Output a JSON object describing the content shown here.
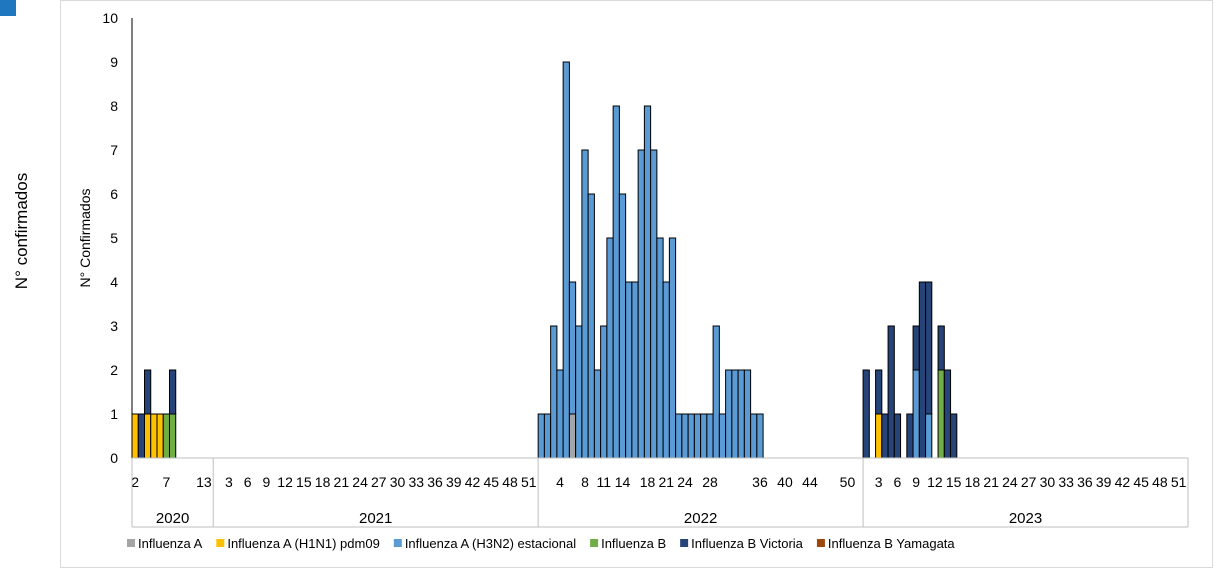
{
  "outer_ylabel": "N°  confirmados",
  "colors": {
    "Influenza A": "#a5a5a5",
    "Influenza A (H1N1) pdm09": "#ffc000",
    "Influenza A (H3N2) estacional": "#5b9bd5",
    "Influenza B": "#70ad47",
    "Influenza B Victoria": "#264478",
    "Influenza B Yamagata": "#9e480e"
  },
  "chart_data": {
    "type": "bar",
    "stacked": true,
    "ylabel": "N° Confirmados",
    "ylim": [
      0,
      10
    ],
    "yticks": [
      0,
      1,
      2,
      3,
      4,
      5,
      6,
      7,
      8,
      9,
      10
    ],
    "years": [
      {
        "label": "2020",
        "weeks": [
          2,
          3,
          4,
          5,
          6,
          7,
          8,
          9,
          10,
          11,
          12,
          13,
          14
        ]
      },
      {
        "label": "2021",
        "weeks": [
          1,
          2,
          3,
          4,
          5,
          6,
          7,
          8,
          9,
          10,
          11,
          12,
          13,
          14,
          15,
          16,
          17,
          18,
          19,
          20,
          21,
          22,
          23,
          24,
          25,
          26,
          27,
          28,
          29,
          30,
          31,
          32,
          33,
          34,
          35,
          36,
          37,
          38,
          39,
          40,
          41,
          42,
          43,
          44,
          45,
          46,
          47,
          48,
          49,
          50,
          51,
          52
        ]
      },
      {
        "label": "2022",
        "weeks": [
          1,
          2,
          3,
          4,
          5,
          6,
          7,
          8,
          9,
          10,
          11,
          12,
          13,
          14,
          15,
          16,
          17,
          18,
          19,
          20,
          21,
          22,
          23,
          24,
          25,
          26,
          27,
          28,
          29,
          30,
          31,
          32,
          33,
          34,
          35,
          36,
          37,
          38,
          39,
          40,
          41,
          42,
          43,
          44,
          45,
          46,
          47,
          48,
          49,
          50,
          51,
          52
        ]
      },
      {
        "label": "2023",
        "weeks": [
          1,
          2,
          3,
          4,
          5,
          6,
          7,
          8,
          9,
          10,
          11,
          12,
          13,
          14,
          15,
          16,
          17,
          18,
          19,
          20,
          21,
          22,
          23,
          24,
          25,
          26,
          27,
          28,
          29,
          30,
          31,
          32,
          33,
          34,
          35,
          36,
          37,
          38,
          39,
          40,
          41,
          42,
          43,
          44,
          45,
          46,
          47,
          48,
          49,
          50,
          51,
          52
        ]
      }
    ],
    "xtick_labels": [
      {
        "year": "2020",
        "week": 2,
        "label": "2"
      },
      {
        "year": "2020",
        "week": 7,
        "label": "7"
      },
      {
        "year": "2020",
        "week": 13,
        "label": "13"
      },
      {
        "year": "2021",
        "week": 3,
        "label": "3"
      },
      {
        "year": "2021",
        "week": 6,
        "label": "6"
      },
      {
        "year": "2021",
        "week": 9,
        "label": "9"
      },
      {
        "year": "2021",
        "week": 12,
        "label": "12"
      },
      {
        "year": "2021",
        "week": 15,
        "label": "15"
      },
      {
        "year": "2021",
        "week": 18,
        "label": "18"
      },
      {
        "year": "2021",
        "week": 21,
        "label": "21"
      },
      {
        "year": "2021",
        "week": 24,
        "label": "24"
      },
      {
        "year": "2021",
        "week": 27,
        "label": "27"
      },
      {
        "year": "2021",
        "week": 30,
        "label": "30"
      },
      {
        "year": "2021",
        "week": 33,
        "label": "33"
      },
      {
        "year": "2021",
        "week": 36,
        "label": "36"
      },
      {
        "year": "2021",
        "week": 39,
        "label": "39"
      },
      {
        "year": "2021",
        "week": 42,
        "label": "42"
      },
      {
        "year": "2021",
        "week": 45,
        "label": "45"
      },
      {
        "year": "2021",
        "week": 48,
        "label": "48"
      },
      {
        "year": "2021",
        "week": 51,
        "label": "51"
      },
      {
        "year": "2022",
        "week": 4,
        "label": "4"
      },
      {
        "year": "2022",
        "week": 8,
        "label": "8"
      },
      {
        "year": "2022",
        "week": 11,
        "label": "11"
      },
      {
        "year": "2022",
        "week": 14,
        "label": "14"
      },
      {
        "year": "2022",
        "week": 18,
        "label": "18"
      },
      {
        "year": "2022",
        "week": 21,
        "label": "21"
      },
      {
        "year": "2022",
        "week": 24,
        "label": "24"
      },
      {
        "year": "2022",
        "week": 28,
        "label": "28"
      },
      {
        "year": "2022",
        "week": 36,
        "label": "36"
      },
      {
        "year": "2022",
        "week": 40,
        "label": "40"
      },
      {
        "year": "2022",
        "week": 44,
        "label": "44"
      },
      {
        "year": "2022",
        "week": 50,
        "label": "50"
      },
      {
        "year": "2023",
        "week": 3,
        "label": "3"
      },
      {
        "year": "2023",
        "week": 6,
        "label": "6"
      },
      {
        "year": "2023",
        "week": 9,
        "label": "9"
      },
      {
        "year": "2023",
        "week": 12,
        "label": "12"
      },
      {
        "year": "2023",
        "week": 15,
        "label": "15"
      },
      {
        "year": "2023",
        "week": 18,
        "label": "18"
      },
      {
        "year": "2023",
        "week": 21,
        "label": "21"
      },
      {
        "year": "2023",
        "week": 24,
        "label": "24"
      },
      {
        "year": "2023",
        "week": 27,
        "label": "27"
      },
      {
        "year": "2023",
        "week": 30,
        "label": "30"
      },
      {
        "year": "2023",
        "week": 33,
        "label": "33"
      },
      {
        "year": "2023",
        "week": 36,
        "label": "36"
      },
      {
        "year": "2023",
        "week": 39,
        "label": "39"
      },
      {
        "year": "2023",
        "week": 42,
        "label": "42"
      },
      {
        "year": "2023",
        "week": 45,
        "label": "45"
      },
      {
        "year": "2023",
        "week": 48,
        "label": "48"
      },
      {
        "year": "2023",
        "week": 51,
        "label": "51"
      }
    ],
    "legend": [
      "Influenza A",
      "Influenza A (H1N1) pdm09",
      "Influenza A (H3N2) estacional",
      "Influenza B",
      "Influenza B Victoria",
      "Influenza B Yamagata"
    ],
    "legend_position": "bottom",
    "bars": [
      {
        "year": "2020",
        "week": 2,
        "series": "Influenza A (H1N1) pdm09",
        "value": 1
      },
      {
        "year": "2020",
        "week": 3,
        "series": "Influenza B Victoria",
        "value": 1
      },
      {
        "year": "2020",
        "week": 4,
        "series": "Influenza A (H1N1) pdm09",
        "value": 1
      },
      {
        "year": "2020",
        "week": 4,
        "series": "Influenza B Victoria",
        "value": 1
      },
      {
        "year": "2020",
        "week": 5,
        "series": "Influenza A (H1N1) pdm09",
        "value": 1
      },
      {
        "year": "2020",
        "week": 6,
        "series": "Influenza A (H1N1) pdm09",
        "value": 1
      },
      {
        "year": "2020",
        "week": 7,
        "series": "Influenza B",
        "value": 1
      },
      {
        "year": "2020",
        "week": 8,
        "series": "Influenza B",
        "value": 1
      },
      {
        "year": "2020",
        "week": 8,
        "series": "Influenza B Victoria",
        "value": 1
      },
      {
        "year": "2022",
        "week": 1,
        "series": "Influenza A (H3N2) estacional",
        "value": 1
      },
      {
        "year": "2022",
        "week": 2,
        "series": "Influenza A (H3N2) estacional",
        "value": 1
      },
      {
        "year": "2022",
        "week": 3,
        "series": "Influenza A (H3N2) estacional",
        "value": 3
      },
      {
        "year": "2022",
        "week": 4,
        "series": "Influenza A (H3N2) estacional",
        "value": 2
      },
      {
        "year": "2022",
        "week": 5,
        "series": "Influenza A (H3N2) estacional",
        "value": 9
      },
      {
        "year": "2022",
        "week": 6,
        "series": "Influenza A",
        "value": 1
      },
      {
        "year": "2022",
        "week": 6,
        "series": "Influenza A (H3N2) estacional",
        "value": 3
      },
      {
        "year": "2022",
        "week": 7,
        "series": "Influenza A (H3N2) estacional",
        "value": 3
      },
      {
        "year": "2022",
        "week": 8,
        "series": "Influenza A (H3N2) estacional",
        "value": 7
      },
      {
        "year": "2022",
        "week": 9,
        "series": "Influenza A (H3N2) estacional",
        "value": 6
      },
      {
        "year": "2022",
        "week": 10,
        "series": "Influenza A (H3N2) estacional",
        "value": 2
      },
      {
        "year": "2022",
        "week": 11,
        "series": "Influenza A (H3N2) estacional",
        "value": 3
      },
      {
        "year": "2022",
        "week": 12,
        "series": "Influenza A (H3N2) estacional",
        "value": 5
      },
      {
        "year": "2022",
        "week": 13,
        "series": "Influenza A (H3N2) estacional",
        "value": 8
      },
      {
        "year": "2022",
        "week": 14,
        "series": "Influenza A (H3N2) estacional",
        "value": 6
      },
      {
        "year": "2022",
        "week": 15,
        "series": "Influenza A (H3N2) estacional",
        "value": 4
      },
      {
        "year": "2022",
        "week": 16,
        "series": "Influenza A (H3N2) estacional",
        "value": 4
      },
      {
        "year": "2022",
        "week": 17,
        "series": "Influenza A (H3N2) estacional",
        "value": 7
      },
      {
        "year": "2022",
        "week": 18,
        "series": "Influenza A (H3N2) estacional",
        "value": 8
      },
      {
        "year": "2022",
        "week": 19,
        "series": "Influenza A (H3N2) estacional",
        "value": 7
      },
      {
        "year": "2022",
        "week": 20,
        "series": "Influenza A (H3N2) estacional",
        "value": 5
      },
      {
        "year": "2022",
        "week": 21,
        "series": "Influenza A (H3N2) estacional",
        "value": 4
      },
      {
        "year": "2022",
        "week": 22,
        "series": "Influenza A (H3N2) estacional",
        "value": 5
      },
      {
        "year": "2022",
        "week": 23,
        "series": "Influenza A (H3N2) estacional",
        "value": 1
      },
      {
        "year": "2022",
        "week": 24,
        "series": "Influenza A (H3N2) estacional",
        "value": 1
      },
      {
        "year": "2022",
        "week": 25,
        "series": "Influenza A (H3N2) estacional",
        "value": 1
      },
      {
        "year": "2022",
        "week": 26,
        "series": "Influenza A (H3N2) estacional",
        "value": 1
      },
      {
        "year": "2022",
        "week": 27,
        "series": "Influenza A (H3N2) estacional",
        "value": 1
      },
      {
        "year": "2022",
        "week": 28,
        "series": "Influenza A (H3N2) estacional",
        "value": 1
      },
      {
        "year": "2022",
        "week": 29,
        "series": "Influenza A (H3N2) estacional",
        "value": 3
      },
      {
        "year": "2022",
        "week": 30,
        "series": "Influenza A (H3N2) estacional",
        "value": 1
      },
      {
        "year": "2022",
        "week": 31,
        "series": "Influenza A (H3N2) estacional",
        "value": 2
      },
      {
        "year": "2022",
        "week": 32,
        "series": "Influenza A (H3N2) estacional",
        "value": 2
      },
      {
        "year": "2022",
        "week": 33,
        "series": "Influenza A (H3N2) estacional",
        "value": 2
      },
      {
        "year": "2022",
        "week": 34,
        "series": "Influenza A (H3N2) estacional",
        "value": 2
      },
      {
        "year": "2022",
        "week": 35,
        "series": "Influenza A (H3N2) estacional",
        "value": 1
      },
      {
        "year": "2022",
        "week": 36,
        "series": "Influenza A (H3N2) estacional",
        "value": 1
      },
      {
        "year": "2023",
        "week": 1,
        "series": "Influenza B Victoria",
        "value": 2
      },
      {
        "year": "2023",
        "week": 3,
        "series": "Influenza A (H1N1) pdm09",
        "value": 1
      },
      {
        "year": "2023",
        "week": 3,
        "series": "Influenza B Victoria",
        "value": 1
      },
      {
        "year": "2023",
        "week": 4,
        "series": "Influenza B Victoria",
        "value": 1
      },
      {
        "year": "2023",
        "week": 5,
        "series": "Influenza B Victoria",
        "value": 3
      },
      {
        "year": "2023",
        "week": 6,
        "series": "Influenza B Victoria",
        "value": 1
      },
      {
        "year": "2023",
        "week": 8,
        "series": "Influenza B Victoria",
        "value": 1
      },
      {
        "year": "2023",
        "week": 9,
        "series": "Influenza A (H3N2) estacional",
        "value": 2
      },
      {
        "year": "2023",
        "week": 9,
        "series": "Influenza B Victoria",
        "value": 1
      },
      {
        "year": "2023",
        "week": 10,
        "series": "Influenza B Victoria",
        "value": 4
      },
      {
        "year": "2023",
        "week": 11,
        "series": "Influenza A (H3N2) estacional",
        "value": 1
      },
      {
        "year": "2023",
        "week": 11,
        "series": "Influenza B Victoria",
        "value": 3
      },
      {
        "year": "2023",
        "week": 13,
        "series": "Influenza B",
        "value": 2
      },
      {
        "year": "2023",
        "week": 13,
        "series": "Influenza B Victoria",
        "value": 1
      },
      {
        "year": "2023",
        "week": 14,
        "series": "Influenza B Victoria",
        "value": 2
      },
      {
        "year": "2023",
        "week": 15,
        "series": "Influenza B Victoria",
        "value": 1
      }
    ]
  }
}
